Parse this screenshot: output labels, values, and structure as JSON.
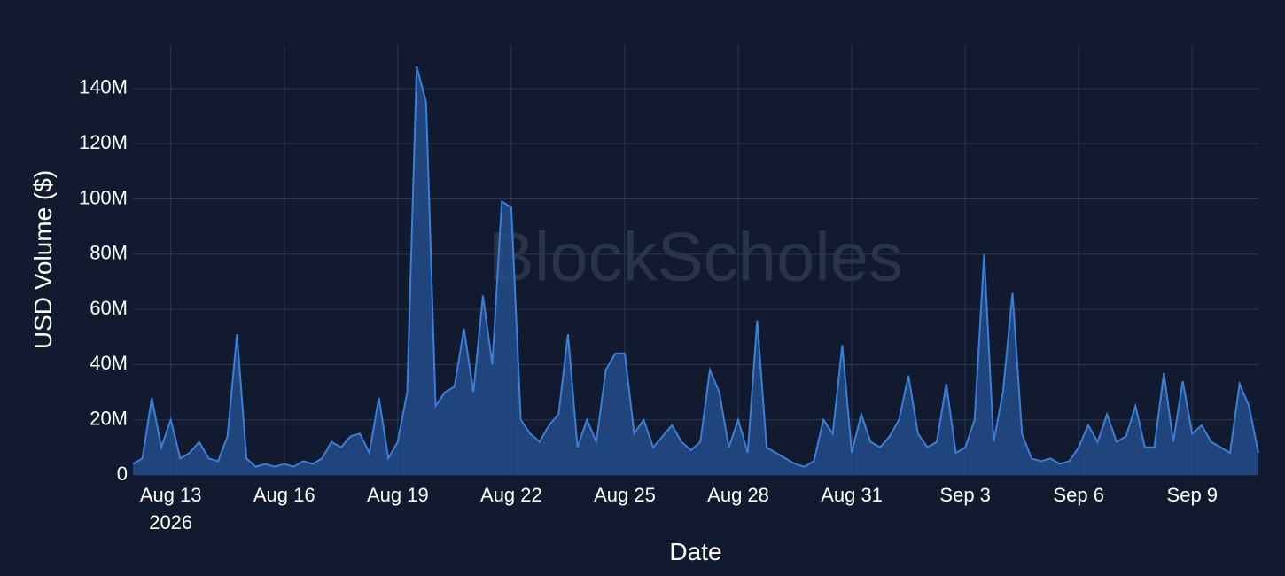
{
  "chart_data": {
    "type": "area",
    "watermark": "BlockScholes",
    "x_label": "Date",
    "y_label": "USD Volume ($)",
    "color": "#3b7fd9",
    "fill": "#214a85",
    "grid": true,
    "x": [
      "2026-08-12T00:00",
      "2026-08-12T06:00",
      "2026-08-12T12:00",
      "2026-08-12T18:00",
      "2026-08-13T00:00",
      "2026-08-13T06:00",
      "2026-08-13T12:00",
      "2026-08-13T18:00",
      "2026-08-14T00:00",
      "2026-08-14T06:00",
      "2026-08-14T12:00",
      "2026-08-14T18:00",
      "2026-08-15T00:00",
      "2026-08-15T06:00",
      "2026-08-15T12:00",
      "2026-08-15T18:00",
      "2026-08-16T00:00",
      "2026-08-16T06:00",
      "2026-08-16T12:00",
      "2026-08-16T18:00",
      "2026-08-17T00:00",
      "2026-08-17T06:00",
      "2026-08-17T12:00",
      "2026-08-17T18:00",
      "2026-08-18T00:00",
      "2026-08-18T06:00",
      "2026-08-18T12:00",
      "2026-08-18T18:00",
      "2026-08-19T00:00",
      "2026-08-19T06:00",
      "2026-08-19T12:00",
      "2026-08-19T18:00",
      "2026-08-20T00:00",
      "2026-08-20T06:00",
      "2026-08-20T12:00",
      "2026-08-20T18:00",
      "2026-08-21T00:00",
      "2026-08-21T06:00",
      "2026-08-21T12:00",
      "2026-08-21T18:00",
      "2026-08-22T00:00",
      "2026-08-22T06:00",
      "2026-08-22T12:00",
      "2026-08-22T18:00",
      "2026-08-23T00:00",
      "2026-08-23T06:00",
      "2026-08-23T12:00",
      "2026-08-23T18:00",
      "2026-08-24T00:00",
      "2026-08-24T06:00",
      "2026-08-24T12:00",
      "2026-08-24T18:00",
      "2026-08-25T00:00",
      "2026-08-25T06:00",
      "2026-08-25T12:00",
      "2026-08-25T18:00",
      "2026-08-26T00:00",
      "2026-08-26T06:00",
      "2026-08-26T12:00",
      "2026-08-26T18:00",
      "2026-08-27T00:00",
      "2026-08-27T06:00",
      "2026-08-27T12:00",
      "2026-08-27T18:00",
      "2026-08-28T00:00",
      "2026-08-28T06:00",
      "2026-08-28T12:00",
      "2026-08-28T18:00",
      "2026-08-29T00:00",
      "2026-08-29T06:00",
      "2026-08-29T12:00",
      "2026-08-29T18:00",
      "2026-08-30T00:00",
      "2026-08-30T06:00",
      "2026-08-30T12:00",
      "2026-08-30T18:00",
      "2026-08-31T00:00",
      "2026-08-31T06:00",
      "2026-08-31T12:00",
      "2026-08-31T18:00",
      "2026-09-01T00:00",
      "2026-09-01T06:00",
      "2026-09-01T12:00",
      "2026-09-01T18:00",
      "2026-09-02T00:00",
      "2026-09-02T06:00",
      "2026-09-02T12:00",
      "2026-09-02T18:00",
      "2026-09-03T00:00",
      "2026-09-03T06:00",
      "2026-09-03T12:00",
      "2026-09-03T18:00",
      "2026-09-04T00:00",
      "2026-09-04T06:00",
      "2026-09-04T12:00",
      "2026-09-04T18:00",
      "2026-09-05T00:00",
      "2026-09-05T06:00",
      "2026-09-05T12:00",
      "2026-09-05T18:00",
      "2026-09-06T00:00",
      "2026-09-06T06:00",
      "2026-09-06T12:00",
      "2026-09-06T18:00",
      "2026-09-07T00:00",
      "2026-09-07T06:00",
      "2026-09-07T12:00",
      "2026-09-07T18:00",
      "2026-09-08T00:00",
      "2026-09-08T06:00",
      "2026-09-08T12:00",
      "2026-09-08T18:00",
      "2026-09-09T00:00",
      "2026-09-09T06:00",
      "2026-09-09T12:00",
      "2026-09-09T18:00",
      "2026-09-10T00:00",
      "2026-09-10T06:00",
      "2026-09-10T12:00",
      "2026-09-10T18:00"
    ],
    "values": [
      4,
      6,
      28,
      10,
      20,
      6,
      8,
      12,
      6,
      5,
      14,
      51,
      6,
      3,
      4,
      3,
      4,
      3,
      5,
      4,
      6,
      12,
      10,
      14,
      15,
      8,
      28,
      6,
      12,
      30,
      148,
      135,
      25,
      30,
      32,
      53,
      30,
      65,
      40,
      99,
      97,
      20,
      15,
      12,
      18,
      22,
      51,
      10,
      20,
      12,
      38,
      44,
      44,
      15,
      20,
      10,
      14,
      18,
      12,
      9,
      12,
      38,
      30,
      10,
      20,
      8,
      56,
      10,
      8,
      6,
      4,
      3,
      5,
      20,
      15,
      47,
      8,
      22,
      12,
      10,
      14,
      20,
      36,
      15,
      10,
      12,
      33,
      8,
      10,
      20,
      80,
      12,
      30,
      66,
      15,
      6,
      5,
      6,
      4,
      5,
      10,
      18,
      12,
      22,
      12,
      14,
      25,
      10,
      10,
      37,
      12,
      34,
      15,
      18,
      12,
      10,
      8,
      33,
      25,
      8
    ],
    "xlim": [
      "2026-08-12T00:00",
      "2026-09-10T18:00"
    ],
    "xticks": [
      {
        "value": "2026-08-13",
        "label": "Aug 13\n2026"
      },
      {
        "value": "2026-08-16",
        "label": "Aug 16"
      },
      {
        "value": "2026-08-19",
        "label": "Aug 19"
      },
      {
        "value": "2026-08-22",
        "label": "Aug 22"
      },
      {
        "value": "2026-08-25",
        "label": "Aug 25"
      },
      {
        "value": "2026-08-28",
        "label": "Aug 28"
      },
      {
        "value": "2026-08-31",
        "label": "Aug 31"
      },
      {
        "value": "2026-09-03",
        "label": "Sep 3"
      },
      {
        "value": "2026-09-06",
        "label": "Sep 6"
      },
      {
        "value": "2026-09-09",
        "label": "Sep 9"
      }
    ],
    "ylim": [
      0,
      156
    ],
    "yticks": [
      0,
      {
        "value": 20,
        "label": "20M"
      },
      {
        "value": 40,
        "label": "40M"
      },
      {
        "value": 60,
        "label": "60M"
      },
      {
        "value": 80,
        "label": "80M"
      },
      {
        "value": 100,
        "label": "100M"
      },
      {
        "value": 120,
        "label": "120M"
      },
      {
        "value": 140,
        "label": "140M"
      }
    ]
  }
}
